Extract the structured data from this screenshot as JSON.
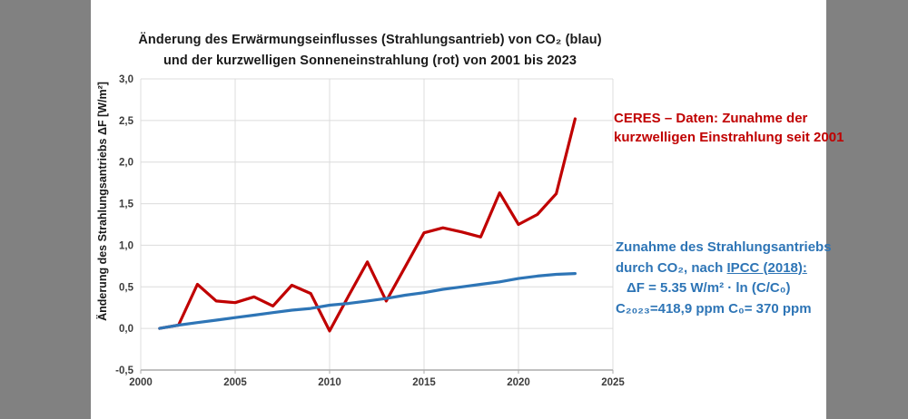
{
  "colors": {
    "ceres_red": "#C00000",
    "co2_blue": "#2E75B6",
    "grid": "#DCDCDC",
    "axis": "#ABABAB",
    "tick_text": "#3d3d3d",
    "side_band_gray": "#818181"
  },
  "title": {
    "line1": "Änderung des Erwärmungseinflusses (Strahlungsantrieb) von CO₂ (blau)",
    "line2": "und der kurzwelligen Sonneneinstrahlung (rot) von 2001 bis 2023"
  },
  "y_axis_label": "Änderung des Strahlungsantriebs ΔF  [W/m²]",
  "annotations": {
    "ceres": {
      "color": "#C00000",
      "line1": "CERES – Daten: Zunahme der",
      "line2": "kurzwelligen Einstrahlung seit 2001"
    },
    "co2": {
      "color": "#2E75B6",
      "line1": "Zunahme des Strahlungsantriebs",
      "line2_pre": "durch CO₂, nach ",
      "line2_underlined": "IPCC (2018):",
      "line3": "ΔF = 5.35 W/m² · ln (C/C₀)",
      "line4": "C₂₀₂₃=418,9 ppm C₀= 370 ppm"
    }
  },
  "chart_data": {
    "type": "line",
    "title": "Änderung des Erwärmungseinflusses (Strahlungsantrieb) von CO₂ (blau) und der kurzwelligen Sonneneinstrahlung (rot) von 2001 bis 2023",
    "xlabel": "",
    "ylabel": "Änderung des Strahlungsantriebs ΔF [W/m²]",
    "xlim": [
      2000,
      2025
    ],
    "ylim": [
      -0.5,
      3.0
    ],
    "grid": true,
    "legend_position": "none",
    "x_ticks": [
      {
        "value": 2000,
        "label": "2000"
      },
      {
        "value": 2005,
        "label": "2005"
      },
      {
        "value": 2010,
        "label": "2010"
      },
      {
        "value": 2015,
        "label": "2015"
      },
      {
        "value": 2020,
        "label": "2020"
      },
      {
        "value": 2025,
        "label": "2025"
      }
    ],
    "y_ticks": [
      {
        "value": -0.5,
        "label": "-0,5"
      },
      {
        "value": 0.0,
        "label": "0,0"
      },
      {
        "value": 0.5,
        "label": "0,5"
      },
      {
        "value": 1.0,
        "label": "1,0"
      },
      {
        "value": 1.5,
        "label": "1,5"
      },
      {
        "value": 2.0,
        "label": "2,0"
      },
      {
        "value": 2.5,
        "label": "2,5"
      },
      {
        "value": 3.0,
        "label": "3,0"
      }
    ],
    "x": [
      2001,
      2002,
      2003,
      2004,
      2005,
      2006,
      2007,
      2008,
      2009,
      2010,
      2011,
      2012,
      2013,
      2014,
      2015,
      2016,
      2017,
      2018,
      2019,
      2020,
      2021,
      2022,
      2023
    ],
    "series": [
      {
        "name": "CERES kurzwellige Einstrahlung",
        "color": "#C00000",
        "stroke_width": 3.2,
        "values": [
          0.0,
          0.04,
          0.53,
          0.33,
          0.31,
          0.38,
          0.27,
          0.52,
          0.42,
          -0.03,
          0.39,
          0.8,
          0.33,
          0.74,
          1.15,
          1.21,
          1.16,
          1.1,
          1.63,
          1.25,
          1.37,
          1.62,
          2.52
        ]
      },
      {
        "name": "Strahlungsantrieb CO2 nach IPCC",
        "color": "#2E75B6",
        "stroke_width": 3.2,
        "values": [
          0.0,
          0.04,
          0.07,
          0.1,
          0.13,
          0.16,
          0.19,
          0.22,
          0.24,
          0.28,
          0.3,
          0.33,
          0.36,
          0.4,
          0.43,
          0.47,
          0.5,
          0.53,
          0.56,
          0.6,
          0.63,
          0.65,
          0.66
        ]
      }
    ]
  }
}
